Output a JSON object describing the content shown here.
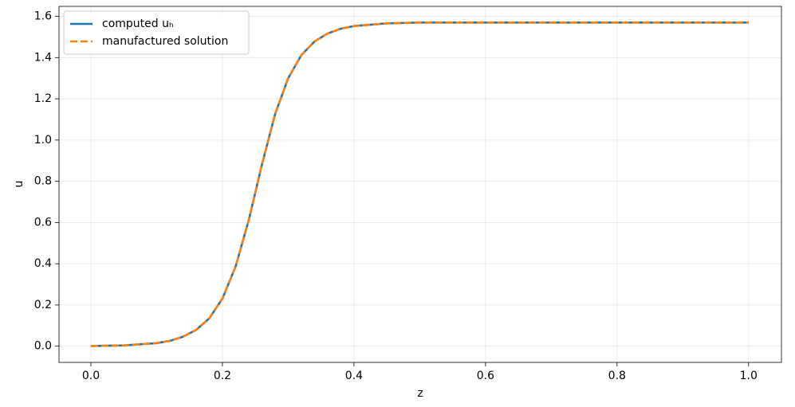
{
  "chart_data": {
    "type": "line",
    "x_label": "z",
    "y_label": "u",
    "x": [
      0,
      0.05,
      0.1,
      0.12,
      0.14,
      0.16,
      0.18,
      0.2,
      0.22,
      0.24,
      0.26,
      0.28,
      0.3,
      0.32,
      0.34,
      0.36,
      0.38,
      0.4,
      0.45,
      0.5,
      0.6,
      0.7,
      0.8,
      0.9,
      1.0
    ],
    "series": [
      {
        "name": "computed uₕ",
        "color": "#1f77b4",
        "style": "solid",
        "values": [
          0.001,
          0.004,
          0.015,
          0.026,
          0.046,
          0.079,
          0.135,
          0.231,
          0.386,
          0.611,
          0.88,
          1.125,
          1.3,
          1.412,
          1.478,
          1.517,
          1.54,
          1.553,
          1.566,
          1.57,
          1.57,
          1.57,
          1.57,
          1.57,
          1.57
        ]
      },
      {
        "name": "manufactured solution",
        "color": "#ff7f0e",
        "style": "dashed",
        "values": [
          0.001,
          0.004,
          0.015,
          0.026,
          0.046,
          0.079,
          0.135,
          0.231,
          0.386,
          0.611,
          0.88,
          1.125,
          1.3,
          1.412,
          1.478,
          1.517,
          1.54,
          1.553,
          1.566,
          1.57,
          1.57,
          1.57,
          1.57,
          1.57,
          1.57
        ]
      }
    ],
    "xlim": [
      -0.0485,
      1.05
    ],
    "ylim": [
      -0.0785,
      1.6485
    ],
    "xticks": [
      {
        "value": 0,
        "label": "0.0"
      },
      0.2,
      0.4,
      0.6,
      0.8,
      {
        "value": 1,
        "label": "1.0"
      }
    ],
    "yticks": [
      {
        "value": 0,
        "label": "0.0"
      },
      0.2,
      0.4,
      0.6,
      0.8,
      {
        "value": 1,
        "label": "1.0"
      },
      1.2,
      1.4,
      1.6
    ],
    "grid": true,
    "legend": "upper left"
  }
}
